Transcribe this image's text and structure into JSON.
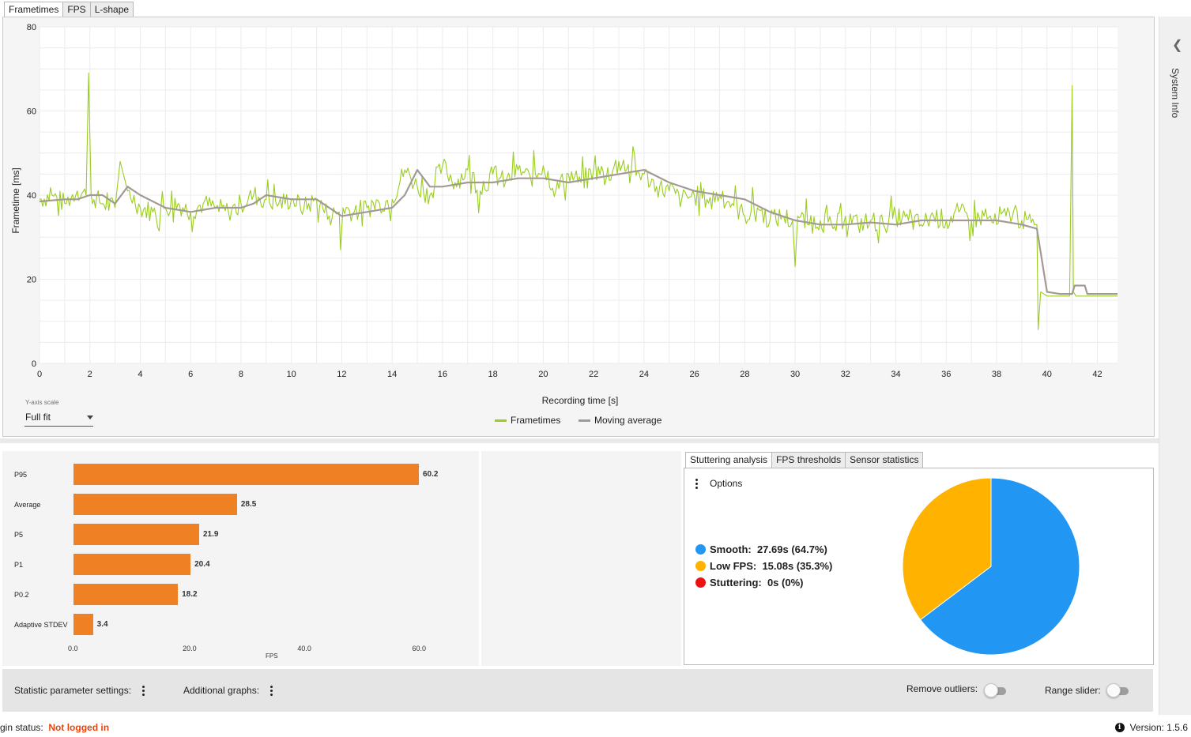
{
  "tabs": [
    "Frametimes",
    "FPS",
    "L-shape"
  ],
  "frametime_chart": {
    "chart_data": {
      "type": "line",
      "xlabel": "Recording time [s]",
      "ylabel": "Frametime [ms]",
      "xlim": [
        0,
        42.8
      ],
      "ylim": [
        0,
        80
      ],
      "xticks": [
        "0",
        "2",
        "4",
        "6",
        "8",
        "10",
        "12",
        "14",
        "16",
        "18",
        "20",
        "22",
        "24",
        "26",
        "28",
        "30",
        "32",
        "34",
        "36",
        "38",
        "40",
        "42"
      ],
      "yticks": [
        "0",
        "20",
        "40",
        "60",
        "80"
      ],
      "grid": true,
      "legend_position": "bottom-center",
      "colors": {
        "frametimes": "#9acd1e",
        "moving_average": "#a39a96"
      },
      "series": [
        {
          "name": "Frametimes",
          "x": [
            0,
            0.5,
            1,
            1.5,
            1.85,
            1.95,
            2.05,
            2.5,
            3,
            3.2,
            3.5,
            4,
            4.5,
            5,
            5.5,
            6,
            6.5,
            7,
            7.5,
            8,
            8.5,
            9,
            9.5,
            10,
            10.5,
            11,
            11.5,
            11.9,
            11.95,
            12.05,
            12.5,
            13,
            13.5,
            14,
            14.5,
            15,
            15.5,
            16,
            16.5,
            17,
            17.5,
            18,
            18.5,
            19,
            19.5,
            20,
            20.5,
            21,
            21.5,
            22,
            22.5,
            23,
            23.5,
            24,
            24.5,
            25,
            25.5,
            26,
            26.5,
            27,
            27.5,
            28,
            28.5,
            29,
            29.5,
            29.9,
            30,
            30.1,
            30.5,
            31,
            31.5,
            32,
            32.5,
            33,
            33.5,
            34,
            34.5,
            35,
            35.5,
            36,
            36.5,
            37,
            37.5,
            38,
            38.5,
            39,
            39.5,
            39.6,
            39.65,
            39.75,
            40,
            40.5,
            40.9,
            41,
            41.05,
            41.15,
            41.5,
            42,
            42.5,
            42.8
          ],
          "values": [
            39,
            40,
            38,
            41,
            40,
            69,
            40,
            38,
            37,
            48,
            41,
            37,
            36,
            37,
            38,
            36,
            38,
            37,
            36,
            38,
            40,
            39,
            38,
            39,
            37,
            39,
            35,
            36,
            27,
            37,
            36,
            37,
            38,
            39,
            46,
            42,
            40,
            47,
            43,
            46,
            41,
            45,
            43,
            46,
            44,
            47,
            41,
            45,
            43,
            46,
            44,
            48,
            46,
            45,
            42,
            41,
            39,
            40,
            39,
            40,
            38,
            35,
            37,
            34,
            35,
            34,
            23,
            35,
            33,
            34,
            32,
            35,
            33,
            34,
            33,
            35,
            34,
            33,
            35,
            34,
            36,
            34,
            35,
            33,
            36,
            34,
            33,
            33,
            8,
            17,
            16,
            16,
            16,
            66,
            17,
            16,
            16,
            16,
            16,
            16
          ]
        },
        {
          "name": "Moving average",
          "x": [
            0,
            1,
            1.5,
            2,
            2.5,
            3,
            3.5,
            4,
            5,
            6,
            7,
            8,
            8.5,
            9,
            10,
            11,
            11.5,
            12,
            13,
            14,
            14.5,
            15,
            15.5,
            16,
            17,
            18,
            19,
            20,
            21,
            22,
            23,
            24,
            25,
            26,
            27,
            28,
            29,
            30,
            31,
            32,
            33,
            34,
            35,
            36,
            37,
            38,
            39,
            39.6,
            40,
            40.5,
            41,
            41.1,
            41.5,
            41.6,
            42,
            42.8
          ],
          "values": [
            38.5,
            39,
            39,
            40,
            40,
            38,
            42,
            40,
            37,
            36,
            37,
            37,
            38,
            40,
            39,
            39,
            37,
            35,
            36,
            37,
            40,
            46,
            42,
            42,
            43,
            43,
            44,
            44,
            43,
            44,
            45,
            46,
            43,
            41,
            40,
            39,
            36,
            34,
            33,
            33,
            33.5,
            33,
            34,
            34,
            34,
            34,
            33,
            32,
            17,
            16.5,
            16.5,
            18.5,
            18.5,
            16.5,
            16.5,
            16.5
          ]
        }
      ]
    },
    "y_axis_scale": {
      "label": "Y-axis scale",
      "value": "Full fit"
    },
    "legend": {
      "frametimes": "Frametimes",
      "moving_average": "Moving average"
    }
  },
  "sidebar": {
    "label": "System Info"
  },
  "stats_chart": {
    "chart_data": {
      "type": "bar",
      "orientation": "horizontal",
      "categories": [
        "P95",
        "Average",
        "P5",
        "P1",
        "P0.2",
        "Adaptive STDEV"
      ],
      "values": [
        60.2,
        28.5,
        21.9,
        20.4,
        18.2,
        3.4
      ],
      "value_labels": [
        "60.2",
        "28.5",
        "21.9",
        "20.4",
        "18.2",
        "3.4"
      ],
      "xlabel": "FPS",
      "xlim": [
        0,
        72
      ],
      "xticks": [
        "0.0",
        "20.0",
        "40.0",
        "60.0"
      ],
      "bar_color": "#f08024"
    }
  },
  "analysis_tabs": [
    "Stuttering analysis",
    "FPS thresholds",
    "Sensor statistics"
  ],
  "stuttering": {
    "options_label": "Options",
    "chart_data": {
      "type": "pie",
      "categories": [
        "Smooth",
        "Low FPS",
        "Stuttering"
      ],
      "values": [
        64.7,
        35.3,
        0
      ],
      "colors": [
        "#2196f3",
        "#ffb300",
        "#ee1111"
      ]
    },
    "legend": [
      {
        "label": "Smooth:",
        "value": "27.69s (64.7%)"
      },
      {
        "label": "Low FPS:",
        "value": "15.08s (35.3%)"
      },
      {
        "label": "Stuttering:",
        "value": "0s (0%)"
      }
    ]
  },
  "bottom_bar": {
    "stat_settings": "Statistic parameter settings:",
    "additional_graphs": "Additional graphs:",
    "remove_outliers": "Remove outliers:",
    "range_slider": "Range slider:"
  },
  "status": {
    "prefix": "gin status:",
    "value": "Not logged in"
  },
  "version": {
    "label": "Version:",
    "value": "1.5.6"
  }
}
